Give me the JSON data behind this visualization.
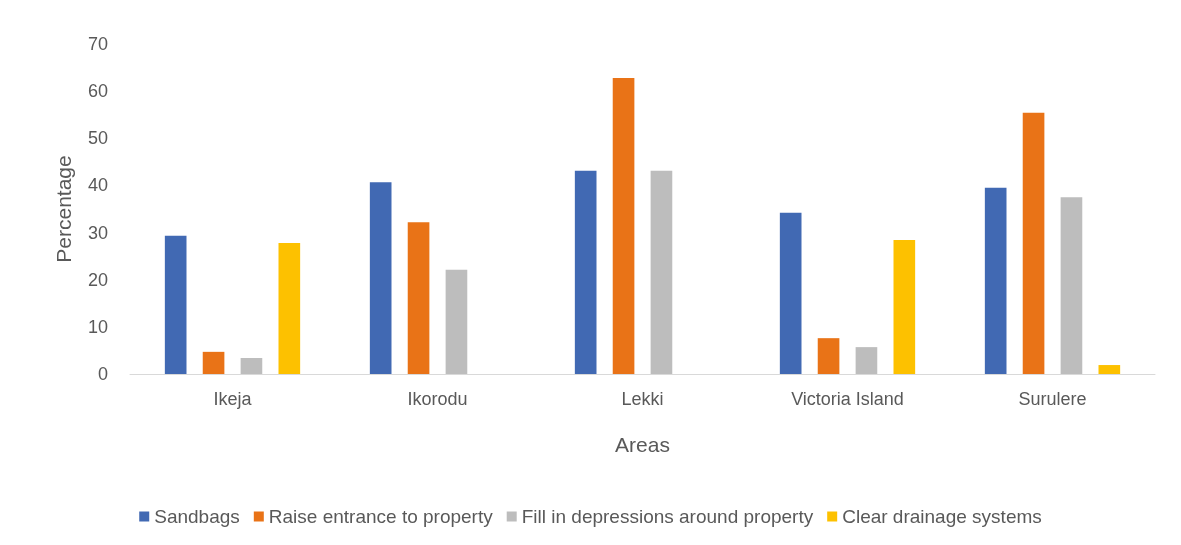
{
  "chart_data": {
    "type": "bar",
    "xlabel": "Areas",
    "ylabel": "Percentage",
    "categories": [
      "Ikeja",
      "Ikorodu",
      "Lekki",
      "Victoria Island",
      "Surulere"
    ],
    "series": [
      {
        "name": "Sandbags",
        "color": "#4169b3",
        "values": [
          29.3,
          40.7,
          43.1,
          34.2,
          39.5
        ]
      },
      {
        "name": "Raise entrance to property",
        "color": "#e97317",
        "values": [
          4.7,
          32.2,
          62.8,
          7.6,
          55.4
        ]
      },
      {
        "name": "Fill in depressions around property",
        "color": "#bdbdbd",
        "values": [
          3.4,
          22.1,
          43.1,
          5.7,
          37.5
        ]
      },
      {
        "name": "Clear drainage systems",
        "color": "#fdc100",
        "values": [
          27.8,
          null,
          null,
          28.4,
          1.9
        ]
      }
    ],
    "ylim": [
      0,
      70
    ],
    "yticks": [
      0,
      10,
      20,
      30,
      40,
      50,
      60,
      70
    ],
    "grid": false,
    "legend": "bottom"
  }
}
